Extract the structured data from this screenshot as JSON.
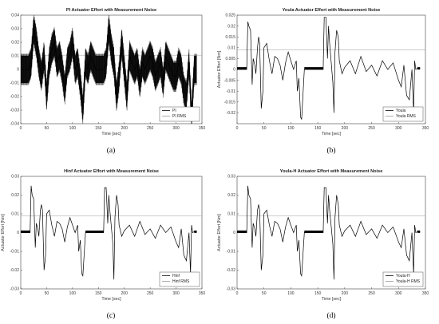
{
  "chart_data": [
    {
      "type": "line",
      "title": "PI Actuator Effort with Measurement Noise",
      "xlabel": "Time [sec]",
      "ylabel": "",
      "xlim": [
        0,
        350
      ],
      "ylim": [
        -0.04,
        0.04
      ],
      "xticks": [
        "0",
        "50",
        "100",
        "150",
        "200",
        "250",
        "300",
        "350"
      ],
      "yticks": [
        "-0.04",
        "-0.03",
        "-0.02",
        "-0.01",
        "0",
        "0.01",
        "0.02",
        "0.03",
        "0.04"
      ],
      "grid": false,
      "legend": "bottom-right",
      "caption": "(a)",
      "series": [
        {
          "name": "PI",
          "color": "#000000",
          "x": [
            0,
            5,
            10,
            15,
            20,
            25,
            30,
            35,
            40,
            45,
            50,
            55,
            60,
            65,
            70,
            75,
            80,
            85,
            90,
            95,
            100,
            105,
            110,
            115,
            120,
            125,
            130,
            135,
            140,
            145,
            150,
            155,
            160,
            165,
            170,
            175,
            180,
            185,
            190,
            195,
            200,
            205,
            210,
            215,
            220,
            225,
            230,
            235,
            240,
            245,
            250,
            255,
            260,
            265,
            270,
            275,
            280,
            285,
            290,
            295,
            300,
            305,
            310,
            315,
            320,
            325,
            330,
            335,
            340
          ],
          "y": [
            0,
            0,
            0,
            0,
            0.005,
            0.03,
            0.02,
            0.005,
            -0.005,
            0.01,
            -0.02,
            0.005,
            0.015,
            0.02,
            0.005,
            0.01,
            0,
            -0.015,
            0.005,
            0.01,
            0.02,
            0,
            0.005,
            -0.01,
            -0.03,
            0.005,
            0,
            0.01,
            0.005,
            0,
            0,
            0,
            0,
            0.005,
            0.03,
            0.015,
            0.005,
            -0.02,
            -0.005,
            0.02,
            0,
            -0.02,
            0.01,
            0.005,
            0,
            0.005,
            -0.01,
            0.005,
            0,
            0.005,
            0.01,
            0.005,
            -0.005,
            0,
            0.005,
            -0.01,
            0.01,
            0.005,
            0,
            -0.005,
            -0.005,
            0.005,
            0,
            -0.015,
            -0.02,
            0.005,
            -0.035,
            0,
            0
          ],
          "band": 0.01
        },
        {
          "name": "PI RMS",
          "color": "#999999",
          "y": 0.0105
        }
      ]
    },
    {
      "type": "line",
      "title": "Youla Actuator Effort with Measurement Noise",
      "xlabel": "Time [sec]",
      "ylabel": "Actuator Effort [Nm]",
      "xlim": [
        0,
        350
      ],
      "ylim": [
        -0.025,
        0.025
      ],
      "xticks": [
        "0",
        "50",
        "100",
        "150",
        "200",
        "250",
        "300",
        "350"
      ],
      "yticks": [
        "-0.02",
        "-0.015",
        "-0.01",
        "-0.005",
        "0",
        "0.005",
        "0.01",
        "0.015",
        "0.02",
        "0.025"
      ],
      "grid": false,
      "legend": "bottom-right",
      "caption": "(b)",
      "series": [
        {
          "name": "Youla",
          "color": "#000000",
          "x": [
            0,
            18,
            20,
            22,
            25,
            28,
            30,
            33,
            35,
            38,
            40,
            42,
            45,
            48,
            50,
            55,
            60,
            65,
            70,
            75,
            80,
            85,
            90,
            95,
            100,
            105,
            110,
            112,
            115,
            118,
            120,
            125,
            160,
            162,
            165,
            168,
            170,
            172,
            175,
            178,
            180,
            182,
            185,
            188,
            190,
            195,
            200,
            210,
            220,
            230,
            240,
            250,
            260,
            270,
            280,
            290,
            300,
            305,
            310,
            315,
            320,
            325,
            328,
            330,
            332,
            335,
            340
          ],
          "y": [
            0,
            0,
            0.022,
            0.02,
            0.018,
            -0.007,
            0.005,
            0.002,
            -0.002,
            0.01,
            0.015,
            0.012,
            -0.018,
            -0.01,
            0.01,
            0.012,
            0.004,
            -0.002,
            0.006,
            0.005,
            0.002,
            -0.005,
            0.003,
            0.008,
            0.004,
            0,
            0.004,
            -0.01,
            -0.004,
            -0.022,
            -0.023,
            0,
            0,
            0.024,
            0.024,
            0.005,
            0.02,
            0.012,
            0.003,
            -0.006,
            -0.02,
            0.008,
            0.018,
            0.015,
            0.004,
            -0.002,
            0.001,
            0.004,
            -0.002,
            0.006,
            -0.001,
            0.002,
            -0.003,
            0.004,
            0,
            0.003,
            -0.005,
            -0.008,
            0.002,
            -0.012,
            -0.014,
            0,
            -0.02,
            0.004,
            0,
            0.0005,
            0.0005
          ]
        },
        {
          "name": "Youla RMS",
          "color": "#999999",
          "y": 0.009
        }
      ]
    },
    {
      "type": "line",
      "title": "Hinf Actuator Effort with Measurement Noise",
      "xlabel": "Time [sec]",
      "ylabel": "Actuator Effort [Nm]",
      "xlim": [
        0,
        350
      ],
      "ylim": [
        -0.03,
        0.03
      ],
      "xticks": [
        "0",
        "50",
        "100",
        "150",
        "200",
        "250",
        "300",
        "350"
      ],
      "yticks": [
        "-0.03",
        "-0.02",
        "-0.01",
        "0",
        "0.01",
        "0.02",
        "0.03"
      ],
      "grid": false,
      "legend": "bottom-right",
      "caption": "(c)",
      "series": [
        {
          "name": "Hinf",
          "color": "#000000",
          "x": [
            0,
            18,
            20,
            22,
            25,
            28,
            30,
            33,
            35,
            38,
            40,
            42,
            45,
            48,
            50,
            55,
            60,
            65,
            70,
            75,
            80,
            85,
            90,
            95,
            100,
            105,
            110,
            112,
            115,
            118,
            120,
            125,
            160,
            162,
            165,
            168,
            170,
            172,
            175,
            178,
            180,
            182,
            185,
            188,
            190,
            195,
            200,
            210,
            220,
            230,
            240,
            250,
            260,
            270,
            280,
            290,
            300,
            305,
            310,
            315,
            320,
            325,
            328,
            330,
            332,
            335,
            340
          ],
          "y": [
            0,
            0,
            0.025,
            0.02,
            0.018,
            -0.008,
            0.005,
            0.002,
            -0.002,
            0.012,
            0.015,
            0.012,
            -0.02,
            -0.012,
            0.01,
            0.012,
            0.004,
            -0.002,
            0.006,
            0.005,
            0.002,
            -0.005,
            0.003,
            0.008,
            0.004,
            0,
            0.004,
            -0.01,
            -0.004,
            -0.022,
            -0.023,
            0,
            0,
            0.024,
            0.024,
            0.005,
            0.02,
            0.012,
            0.003,
            -0.006,
            -0.025,
            0.008,
            0.02,
            0.015,
            0.004,
            -0.002,
            0.001,
            0.004,
            -0.002,
            0.006,
            -0.001,
            0.002,
            -0.003,
            0.004,
            0,
            0.003,
            -0.005,
            -0.008,
            0.002,
            -0.012,
            -0.015,
            0,
            -0.022,
            0.004,
            0,
            0.0005,
            0.0005
          ]
        },
        {
          "name": "Hinf RMS",
          "color": "#999999",
          "y": 0.009
        }
      ]
    },
    {
      "type": "line",
      "title": "Youla-H Actuator Effort with Measurement Noise",
      "xlabel": "Time [sec]",
      "ylabel": "Actuator Effort [Nm]",
      "xlim": [
        0,
        350
      ],
      "ylim": [
        -0.03,
        0.03
      ],
      "xticks": [
        "0",
        "50",
        "100",
        "150",
        "200",
        "250",
        "300",
        "350"
      ],
      "yticks": [
        "-0.03",
        "-0.02",
        "-0.01",
        "0",
        "0.01",
        "0.02",
        "0.03"
      ],
      "grid": false,
      "legend": "bottom-right",
      "caption": "(d)",
      "series": [
        {
          "name": "Youla-H",
          "color": "#000000",
          "x": [
            0,
            18,
            20,
            22,
            25,
            28,
            30,
            33,
            35,
            38,
            40,
            42,
            45,
            48,
            50,
            55,
            60,
            65,
            70,
            75,
            80,
            85,
            90,
            95,
            100,
            105,
            110,
            112,
            115,
            118,
            120,
            125,
            160,
            162,
            165,
            168,
            170,
            172,
            175,
            178,
            180,
            182,
            185,
            188,
            190,
            195,
            200,
            210,
            220,
            230,
            240,
            250,
            260,
            270,
            280,
            290,
            300,
            305,
            310,
            315,
            320,
            325,
            328,
            330,
            332,
            335,
            340
          ],
          "y": [
            0,
            0,
            0.025,
            0.02,
            0.018,
            -0.008,
            0.005,
            0.002,
            -0.002,
            0.012,
            0.015,
            0.012,
            -0.02,
            -0.012,
            0.01,
            0.012,
            0.004,
            -0.002,
            0.006,
            0.005,
            0.002,
            -0.005,
            0.003,
            0.008,
            0.004,
            0,
            0.004,
            -0.01,
            -0.004,
            -0.022,
            -0.023,
            0,
            0,
            0.024,
            0.024,
            0.005,
            0.02,
            0.012,
            0.003,
            -0.006,
            -0.025,
            0.008,
            0.02,
            0.015,
            0.004,
            -0.002,
            0.001,
            0.004,
            -0.002,
            0.006,
            -0.001,
            0.002,
            -0.003,
            0.004,
            0,
            0.003,
            -0.005,
            -0.008,
            0.002,
            -0.012,
            -0.015,
            0,
            -0.022,
            0.004,
            0,
            0.0005,
            0.0005
          ]
        },
        {
          "name": "Youla-H RMS",
          "color": "#999999",
          "y": 0.009
        }
      ]
    }
  ]
}
